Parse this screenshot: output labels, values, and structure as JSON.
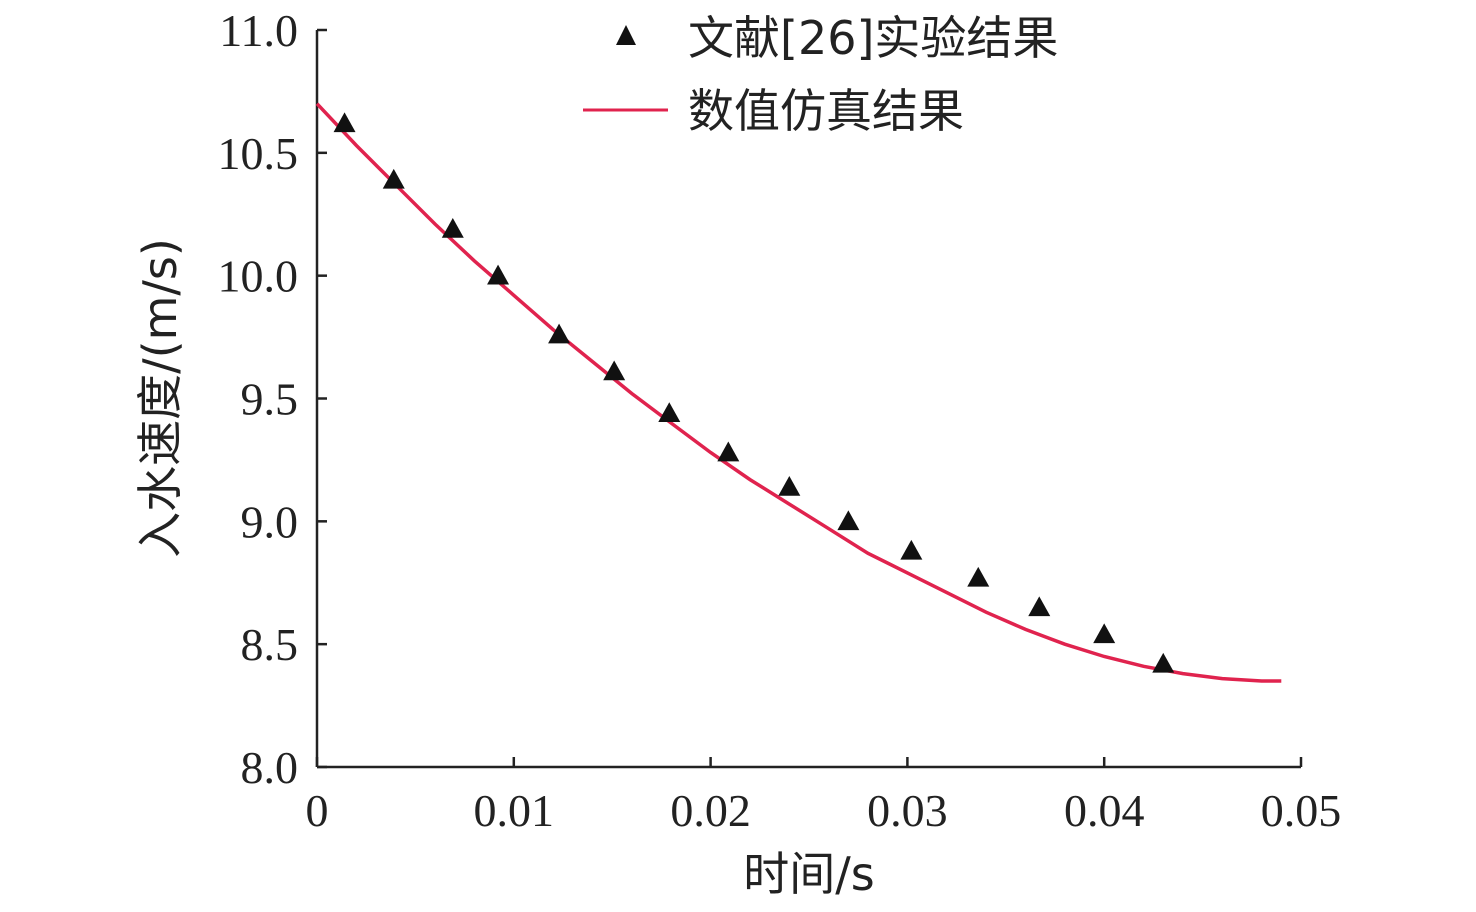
{
  "chart_data": {
    "type": "scatter",
    "title": "",
    "xlabel": "时间/s",
    "ylabel": "入水速度/(m/s)",
    "xlim": [
      0,
      0.05
    ],
    "ylim": [
      8.0,
      11.0
    ],
    "x_ticks": [
      0,
      0.01,
      0.02,
      0.03,
      0.04,
      0.05
    ],
    "x_tick_labels": [
      "0",
      "0.01",
      "0.02",
      "0.03",
      "0.04",
      "0.05"
    ],
    "y_ticks": [
      8.0,
      8.5,
      9.0,
      9.5,
      10.0,
      10.5,
      11.0
    ],
    "y_tick_labels": [
      "8.0",
      "8.5",
      "9.0",
      "9.5",
      "10.0",
      "10.5",
      "11.0"
    ],
    "grid": false,
    "legend_position": "top-right",
    "series": [
      {
        "name": "文献[26]实验结果",
        "type": "scatter",
        "marker": "triangle",
        "color": "#111111",
        "x": [
          0.0014,
          0.0039,
          0.0069,
          0.0092,
          0.0123,
          0.0151,
          0.0179,
          0.0209,
          0.024,
          0.027,
          0.0302,
          0.0336,
          0.0367,
          0.04,
          0.043
        ],
        "y": [
          10.62,
          10.39,
          10.19,
          10.0,
          9.76,
          9.61,
          9.44,
          9.28,
          9.14,
          9.0,
          8.88,
          8.77,
          8.65,
          8.54,
          8.42
        ]
      },
      {
        "name": "数值仿真结果",
        "type": "line",
        "color": "#e0234e",
        "x": [
          0.0,
          0.002,
          0.004,
          0.006,
          0.008,
          0.01,
          0.012,
          0.014,
          0.016,
          0.018,
          0.02,
          0.022,
          0.024,
          0.026,
          0.028,
          0.03,
          0.032,
          0.034,
          0.036,
          0.038,
          0.04,
          0.042,
          0.044,
          0.046,
          0.048,
          0.049
        ],
        "y": [
          10.7,
          10.53,
          10.37,
          10.21,
          10.06,
          9.92,
          9.78,
          9.65,
          9.52,
          9.4,
          9.28,
          9.17,
          9.07,
          8.97,
          8.87,
          8.79,
          8.71,
          8.63,
          8.56,
          8.5,
          8.45,
          8.41,
          8.38,
          8.36,
          8.35,
          8.35
        ]
      }
    ]
  }
}
